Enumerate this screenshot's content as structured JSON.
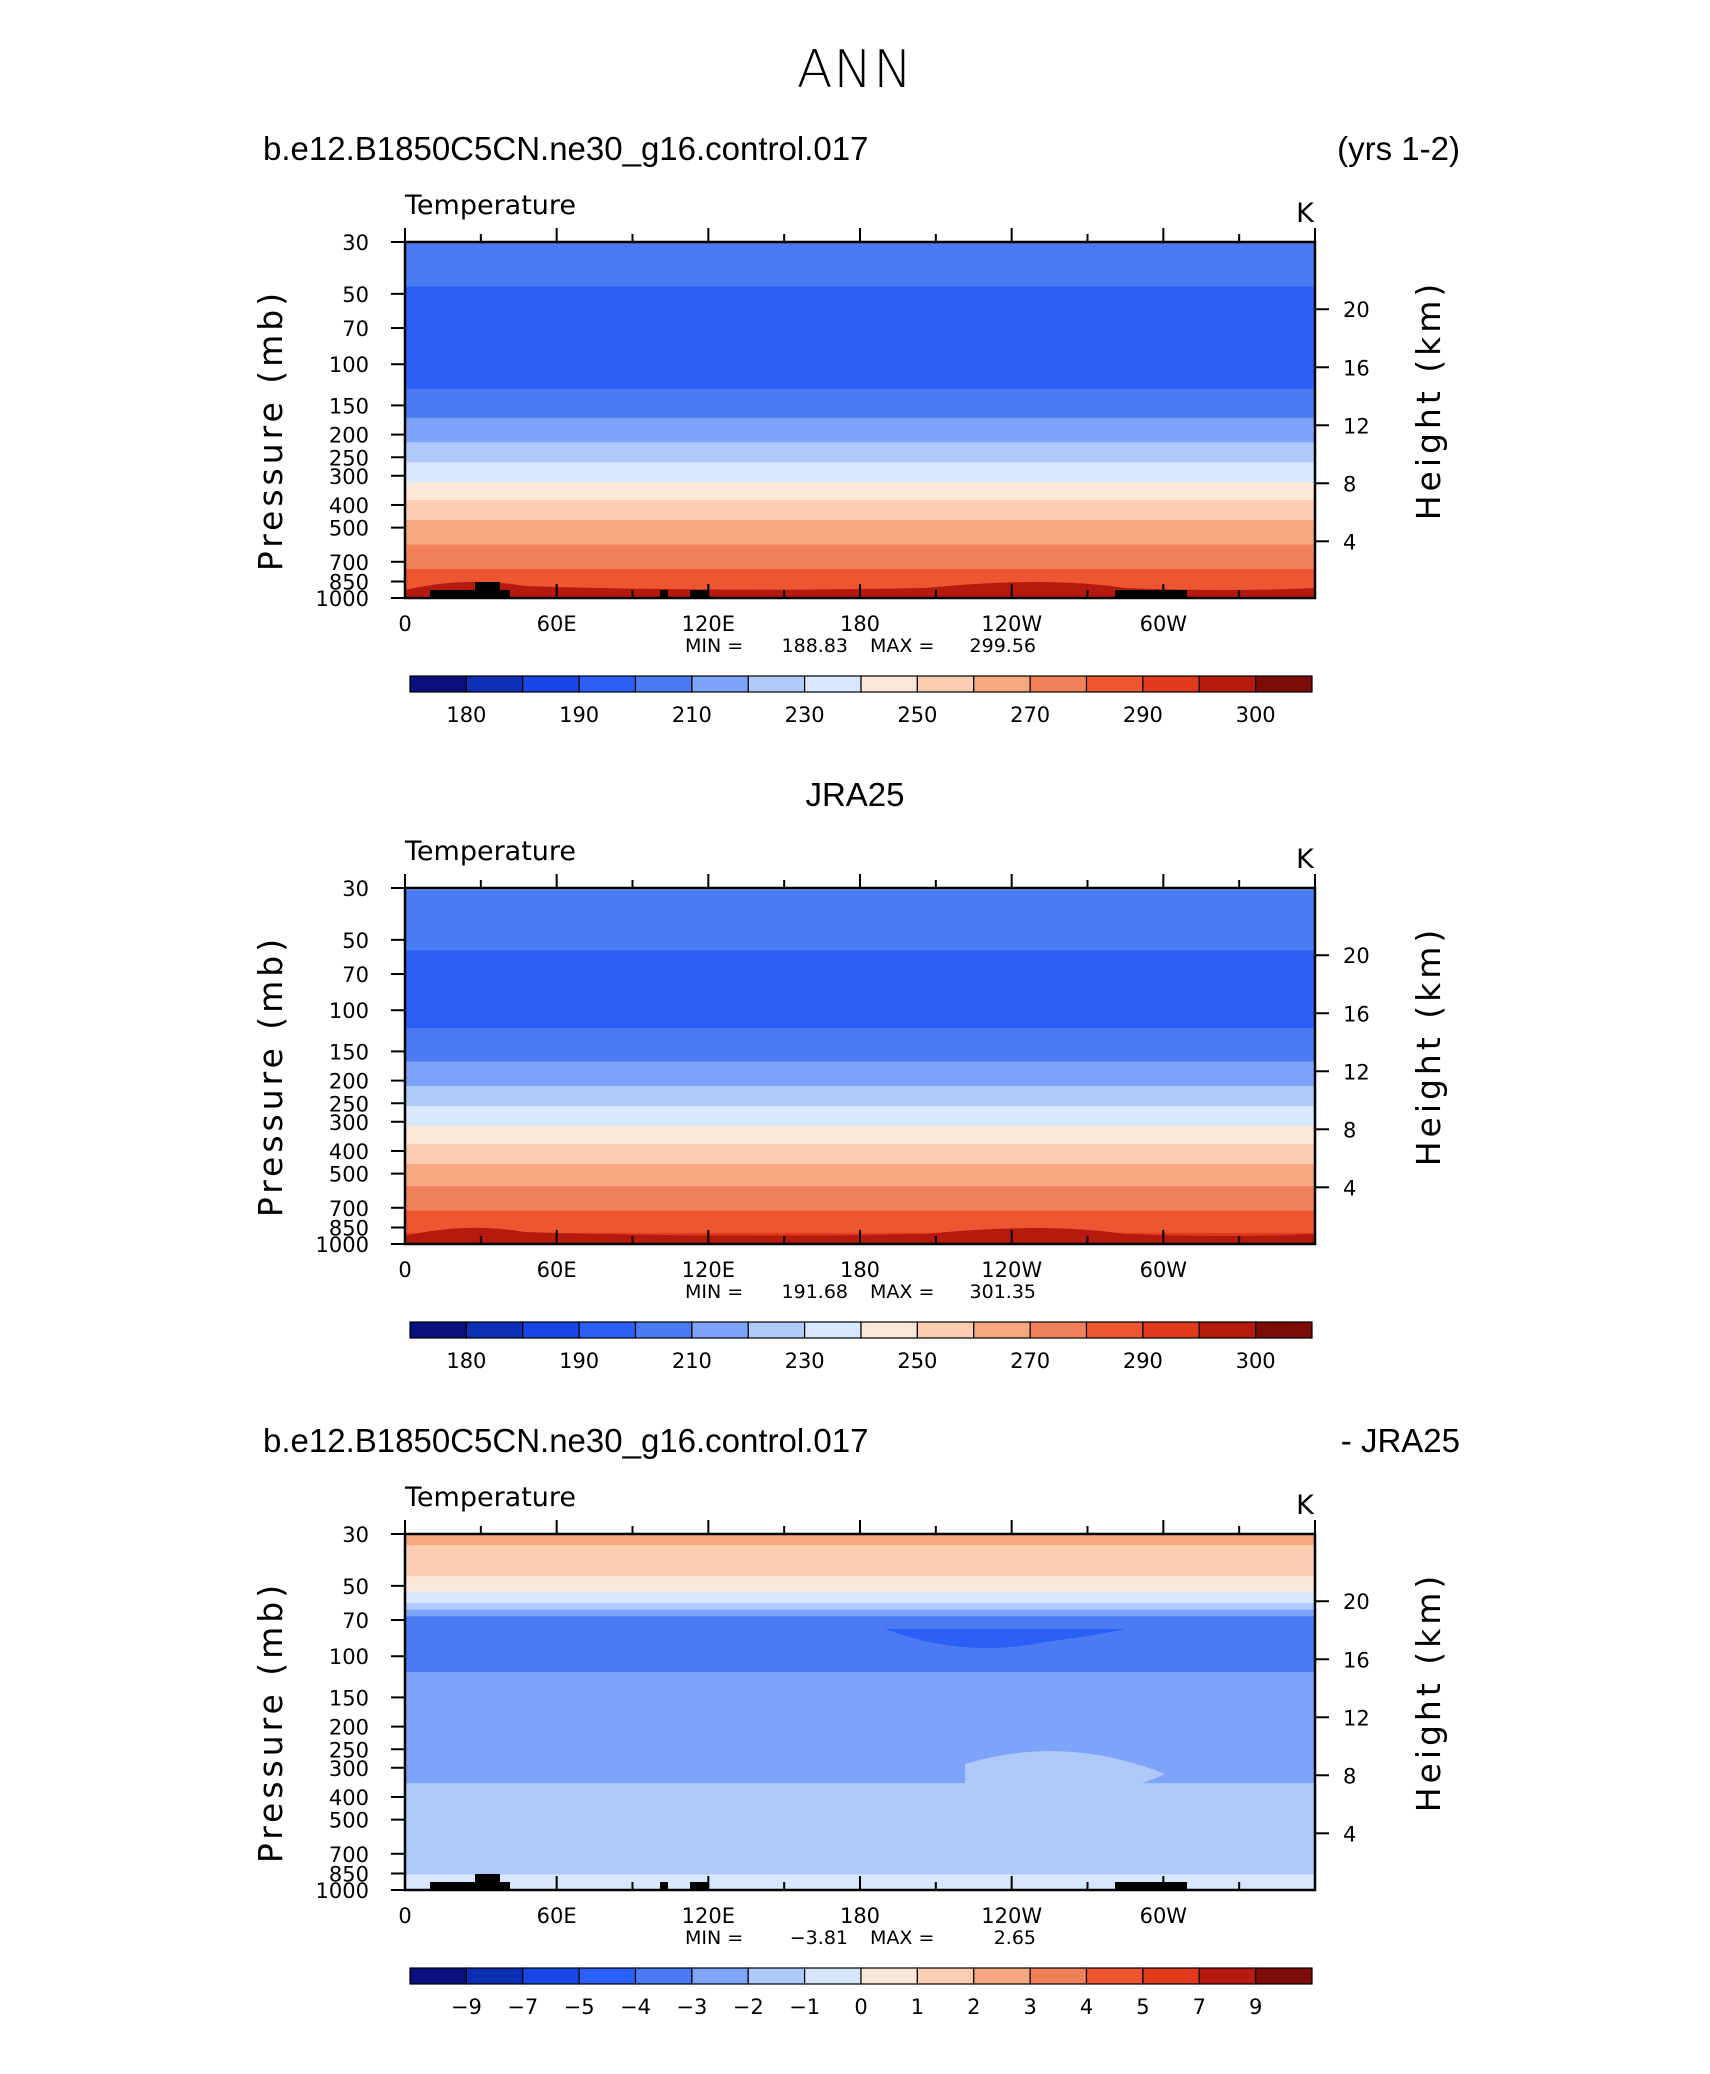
{
  "figure_title": "ANN",
  "chart_data": [
    {
      "type": "heatmap",
      "header_left": "b.e12.B1850C5CN.ne30_g16.control.017",
      "header_right": "(yrs 1-2)",
      "header_center": "",
      "subtitle": "Temperature",
      "units": "K",
      "ylabel": "Pressure (mb)",
      "ylabel_right": "Height (km)",
      "x_ticks": [
        "0",
        "60E",
        "120E",
        "180",
        "120W",
        "60W"
      ],
      "y_ticks": [
        "30",
        "50",
        "70",
        "100",
        "150",
        "200",
        "250",
        "300",
        "400",
        "500",
        "700",
        "850",
        "1000"
      ],
      "y_right_ticks": [
        "20",
        "16",
        "12",
        "8",
        "4"
      ],
      "min_label": "MIN =",
      "min_value": "188.83",
      "max_label": "MAX =",
      "max_value": "299.56",
      "levels": [
        180,
        185,
        190,
        200,
        210,
        220,
        230,
        240,
        250,
        260,
        270,
        280,
        290,
        295,
        300
      ],
      "colorbar_labels": [
        "180",
        "190",
        "210",
        "230",
        "250",
        "270",
        "290",
        "300"
      ],
      "profile": [
        [
          30,
          208
        ],
        [
          40,
          202
        ],
        [
          50,
          199
        ],
        [
          60,
          197
        ],
        [
          70,
          195
        ],
        [
          85,
          194
        ],
        [
          100,
          194
        ],
        [
          150,
          205
        ],
        [
          200,
          217
        ],
        [
          250,
          228
        ],
        [
          300,
          237
        ],
        [
          350,
          246
        ],
        [
          400,
          253
        ],
        [
          500,
          264
        ],
        [
          700,
          277
        ],
        [
          850,
          286
        ],
        [
          1000,
          292
        ]
      ],
      "colors": [
        "#07107c",
        "#0a2fb4",
        "#1b46e6",
        "#2c5ff5",
        "#4a7bf3",
        "#7ea4f9",
        "#b0c9fb",
        "#d7e7fd",
        "#fbe7d7",
        "#fbcdb2",
        "#f7a880",
        "#f2805a",
        "#ed5630",
        "#df3a1b",
        "#b61a0f",
        "#7d0b08"
      ]
    },
    {
      "type": "heatmap",
      "header_left": "",
      "header_right": "",
      "header_center": "JRA25",
      "subtitle": "Temperature",
      "units": "K",
      "ylabel": "Pressure (mb)",
      "ylabel_right": "Height (km)",
      "x_ticks": [
        "0",
        "60E",
        "120E",
        "180",
        "120W",
        "60W"
      ],
      "y_ticks": [
        "30",
        "50",
        "70",
        "100",
        "150",
        "200",
        "250",
        "300",
        "400",
        "500",
        "700",
        "850",
        "1000"
      ],
      "y_right_ticks": [
        "20",
        "16",
        "12",
        "8",
        "4"
      ],
      "min_label": "MIN =",
      "min_value": "191.68",
      "max_label": "MAX =",
      "max_value": "301.35",
      "levels": [
        180,
        185,
        190,
        200,
        210,
        220,
        230,
        240,
        250,
        260,
        270,
        280,
        290,
        295,
        300
      ],
      "colorbar_labels": [
        "180",
        "190",
        "210",
        "230",
        "250",
        "270",
        "290",
        "300"
      ],
      "profile": [
        [
          30,
          210
        ],
        [
          40,
          204
        ],
        [
          50,
          201
        ],
        [
          60,
          199
        ],
        [
          70,
          197
        ],
        [
          85,
          196
        ],
        [
          100,
          196
        ],
        [
          150,
          206
        ],
        [
          200,
          218
        ],
        [
          250,
          229
        ],
        [
          300,
          238
        ],
        [
          350,
          247
        ],
        [
          400,
          254
        ],
        [
          500,
          265
        ],
        [
          700,
          279
        ],
        [
          850,
          288
        ],
        [
          1000,
          295
        ]
      ],
      "colors": [
        "#07107c",
        "#0a2fb4",
        "#1b46e6",
        "#2c5ff5",
        "#4a7bf3",
        "#7ea4f9",
        "#b0c9fb",
        "#d7e7fd",
        "#fbe7d7",
        "#fbcdb2",
        "#f7a880",
        "#f2805a",
        "#ed5630",
        "#df3a1b",
        "#b61a0f",
        "#7d0b08"
      ]
    },
    {
      "type": "heatmap",
      "header_left": "b.e12.B1850C5CN.ne30_g16.control.017",
      "header_right": "- JRA25",
      "header_center": "",
      "subtitle": "Temperature",
      "units": "K",
      "ylabel": "Pressure (mb)",
      "ylabel_right": "Height (km)",
      "x_ticks": [
        "0",
        "60E",
        "120E",
        "180",
        "120W",
        "60W"
      ],
      "y_ticks": [
        "30",
        "50",
        "70",
        "100",
        "150",
        "200",
        "250",
        "300",
        "400",
        "500",
        "700",
        "850",
        "1000"
      ],
      "y_right_ticks": [
        "20",
        "16",
        "12",
        "8",
        "4"
      ],
      "min_label": "MIN =",
      "min_value": "−3.81",
      "max_label": "MAX =",
      "max_value": "2.65",
      "levels": [
        -9,
        -7,
        -5,
        -4,
        -3,
        -2,
        -1,
        0,
        1,
        2,
        3,
        4,
        5,
        7,
        9
      ],
      "colorbar_labels": [
        "−9",
        "−7",
        "−5",
        "−4",
        "−3",
        "−2",
        "−1",
        "0",
        "1",
        "2",
        "3",
        "4",
        "5",
        "7",
        "9"
      ],
      "profile": [
        [
          30,
          2.3
        ],
        [
          40,
          1.5
        ],
        [
          50,
          0.5
        ],
        [
          60,
          -1.2
        ],
        [
          70,
          -3.6
        ],
        [
          85,
          -3.7
        ],
        [
          100,
          -3.2
        ],
        [
          150,
          -2.6
        ],
        [
          200,
          -2.5
        ],
        [
          250,
          -2.3
        ],
        [
          300,
          -2.1
        ],
        [
          400,
          -1.9
        ],
        [
          500,
          -1.5
        ],
        [
          700,
          -1.6
        ],
        [
          800,
          -1.3
        ],
        [
          900,
          -0.7
        ],
        [
          1000,
          -0.4
        ]
      ],
      "colors": [
        "#07107c",
        "#0a2fb4",
        "#1b46e6",
        "#2c5ff5",
        "#4a7bf3",
        "#7ea4f9",
        "#b0c9fb",
        "#d7e7fd",
        "#fbe7d7",
        "#fbcdb2",
        "#f7a880",
        "#f2805a",
        "#ed5630",
        "#df3a1b",
        "#b61a0f",
        "#7d0b08"
      ]
    }
  ]
}
